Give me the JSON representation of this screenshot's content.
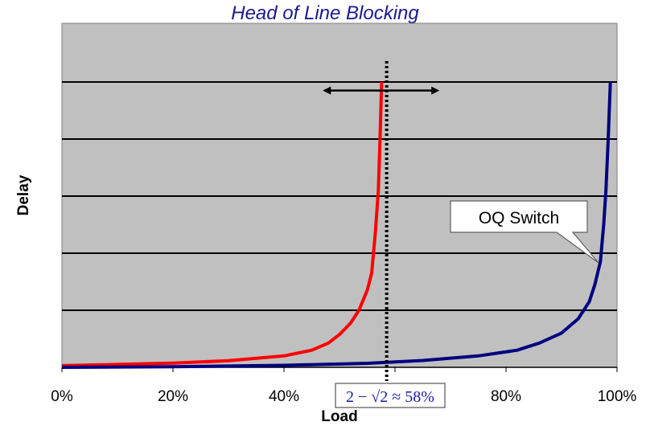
{
  "chart_data": {
    "type": "line",
    "title": "Head of Line Blocking",
    "xlabel": "Load",
    "ylabel": "Delay",
    "xlim": [
      0,
      100
    ],
    "ylim": [
      0,
      100
    ],
    "x_ticks": [
      "0%",
      "20%",
      "40%",
      "",
      "80%",
      "100%"
    ],
    "x_tick_values": [
      0,
      20,
      40,
      60,
      80,
      100
    ],
    "grid": true,
    "series": [
      {
        "name": "",
        "color": "#ff0000",
        "points": [
          [
            0,
            0.6
          ],
          [
            10,
            1.0
          ],
          [
            20,
            1.5
          ],
          [
            30,
            2.3
          ],
          [
            40,
            4.0
          ],
          [
            45,
            6.0
          ],
          [
            48,
            8.5
          ],
          [
            50,
            11.5
          ],
          [
            52,
            15.5
          ],
          [
            53.5,
            20
          ],
          [
            55,
            27
          ],
          [
            55.8,
            33
          ],
          [
            56.5,
            48
          ],
          [
            57,
            62
          ],
          [
            57.3,
            80
          ],
          [
            57.6,
            100
          ]
        ]
      },
      {
        "name": "OQ Switch",
        "color": "#000080",
        "points": [
          [
            0,
            0
          ],
          [
            20,
            0.2
          ],
          [
            40,
            0.7
          ],
          [
            55,
            1.4
          ],
          [
            65,
            2.4
          ],
          [
            75,
            4.0
          ],
          [
            82,
            6.0
          ],
          [
            86,
            8.5
          ],
          [
            90,
            12
          ],
          [
            93,
            17
          ],
          [
            95,
            23
          ],
          [
            96,
            29
          ],
          [
            97,
            37
          ],
          [
            97.6,
            50
          ],
          [
            98,
            62
          ],
          [
            98.4,
            80
          ],
          [
            98.8,
            100
          ]
        ]
      }
    ],
    "annotations": [
      {
        "type": "vline",
        "x": 58.5,
        "style": "dotted"
      },
      {
        "type": "double-arrow",
        "x_range": [
          47,
          68
        ],
        "y": 97
      },
      {
        "type": "callout",
        "text": "OQ Switch",
        "target_series": "OQ Switch"
      },
      {
        "type": "label",
        "text": "2 − √2 ≈ 58%",
        "x": 58.5
      }
    ]
  },
  "colors": {
    "plot_background": "#c0c0c0",
    "gridline": "#000000",
    "title": "#1a1a8c",
    "formula": "#1a1aa8"
  }
}
